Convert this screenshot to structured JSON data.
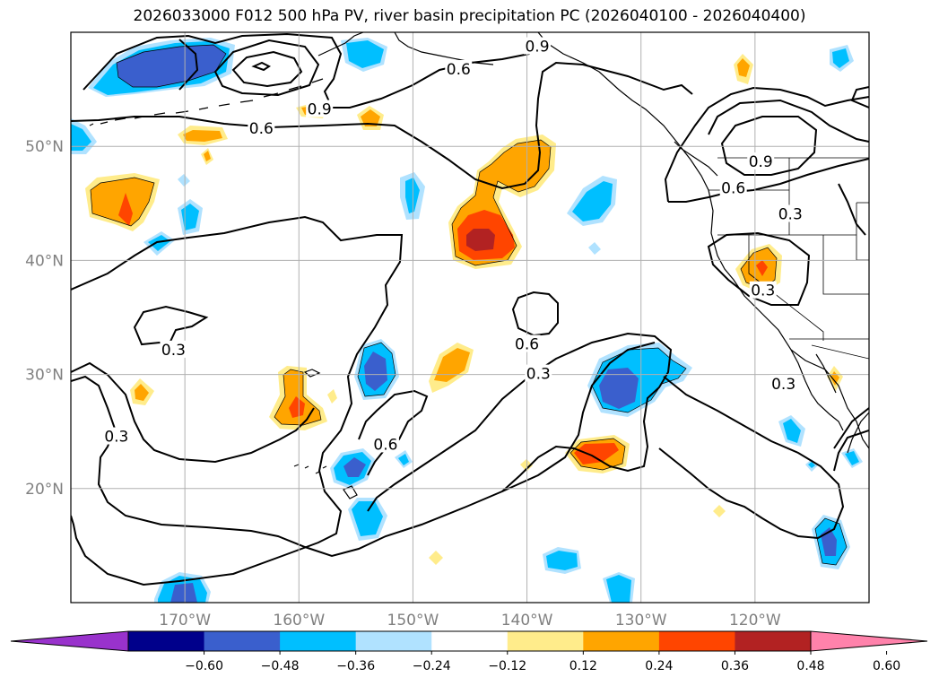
{
  "title": "2026033000 F012 500 hPa PV, river basin precipitation PC (2026040100 - 2026040400)",
  "map": {
    "lon_range": [
      -180,
      -110
    ],
    "lat_range": [
      10,
      60
    ],
    "lat_ticks": [
      {
        "value": 20,
        "label": "20°N"
      },
      {
        "value": 30,
        "label": "30°N"
      },
      {
        "value": 40,
        "label": "40°N"
      },
      {
        "value": 50,
        "label": "50°N"
      }
    ],
    "lon_ticks": [
      {
        "value": -170,
        "label": "170°W"
      },
      {
        "value": -160,
        "label": "160°W"
      },
      {
        "value": -150,
        "label": "150°W"
      },
      {
        "value": -140,
        "label": "140°W"
      },
      {
        "value": -130,
        "label": "130°W"
      },
      {
        "value": -120,
        "label": "120°W"
      }
    ],
    "grid": true,
    "contour_labels": [
      {
        "text": "0.6",
        "lon": -146,
        "lat": 56.7
      },
      {
        "text": "0.9",
        "lon": -139.1,
        "lat": 58.7
      },
      {
        "text": "0.9",
        "lon": -158.2,
        "lat": 53.2
      },
      {
        "text": "0.6",
        "lon": -163.3,
        "lat": 51.5
      },
      {
        "text": "0.9",
        "lon": -119.5,
        "lat": 48.6
      },
      {
        "text": "0.6",
        "lon": -121.9,
        "lat": 46.3
      },
      {
        "text": "0.3",
        "lon": -116.9,
        "lat": 44.0
      },
      {
        "text": "0.3",
        "lon": -119.3,
        "lat": 37.3
      },
      {
        "text": "0.3",
        "lon": -171,
        "lat": 32.1
      },
      {
        "text": "0.6",
        "lon": -140,
        "lat": 32.6
      },
      {
        "text": "0.3",
        "lon": -139,
        "lat": 30.0
      },
      {
        "text": "0.3",
        "lon": -117.5,
        "lat": 29.1
      },
      {
        "text": "0.6",
        "lon": -152.4,
        "lat": 23.8
      },
      {
        "text": "0.3",
        "lon": -176,
        "lat": 24.5
      }
    ]
  },
  "colorbar": {
    "ticks": [
      "−0.60",
      "−0.48",
      "−0.36",
      "−0.24",
      "−0.12",
      "0.12",
      "0.24",
      "0.36",
      "0.48",
      "0.60"
    ],
    "colors": [
      "#9932cc",
      "#00008b",
      "#3a5fcd",
      "#00bfff",
      "#b0e2ff",
      "#ffffff",
      "#ffec8b",
      "#ffa500",
      "#ff4500",
      "#b22222",
      "#ff82ab"
    ]
  },
  "shading": {
    "levels": [
      -0.48,
      -0.36,
      -0.24,
      -0.12,
      0.12,
      0.24,
      0.36,
      0.48
    ],
    "colors": {
      "neg_0.12": "#b0e2ff",
      "neg_0.24": "#00bfff",
      "neg_0.36": "#3a5fcd",
      "pos_0.12": "#ffec8b",
      "pos_0.24": "#ffa500",
      "pos_0.36": "#ff4500",
      "pos_0.48": "#b22222"
    }
  }
}
